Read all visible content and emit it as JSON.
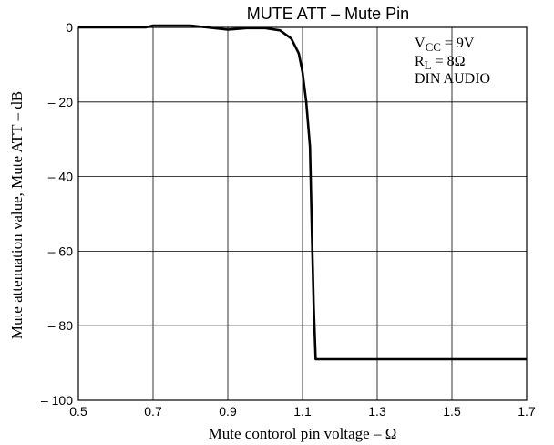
{
  "chart_data": {
    "type": "line",
    "title": "MUTE ATT  –  Mute Pin",
    "xlabel": "Mute contorol pin voltage  –  Ω",
    "ylabel": "Mute attenuation value, Mute ATT  –  dB",
    "xlim": [
      0.5,
      1.7
    ],
    "ylim": [
      -100,
      0
    ],
    "x_ticks": [
      "0.5",
      "0.7",
      "0.9",
      "1.1",
      "1.3",
      "1.5",
      "1.7"
    ],
    "y_ticks": [
      "0",
      "– 20",
      "– 40",
      "– 60",
      "– 80",
      "– 100"
    ],
    "grid": true,
    "annotation": {
      "vcc_main": "V",
      "vcc_sub": "CC",
      "vcc_rest": " = 9V",
      "rl_main": "R",
      "rl_sub": "L",
      "rl_rest": " = 8Ω",
      "line3": "DIN AUDIO"
    },
    "series": [
      {
        "x": [
          0.5,
          0.68,
          0.7,
          0.8,
          0.9,
          0.95,
          1.0,
          1.04,
          1.07,
          1.09,
          1.1,
          1.11,
          1.12,
          1.125,
          1.13,
          1.135,
          1.14,
          1.7
        ],
        "y": [
          0,
          0,
          0.5,
          0.5,
          -0.6,
          -0.2,
          -0.2,
          -0.8,
          -3,
          -7,
          -12,
          -20,
          -32,
          -55,
          -75,
          -89,
          -89,
          -89
        ]
      }
    ]
  }
}
